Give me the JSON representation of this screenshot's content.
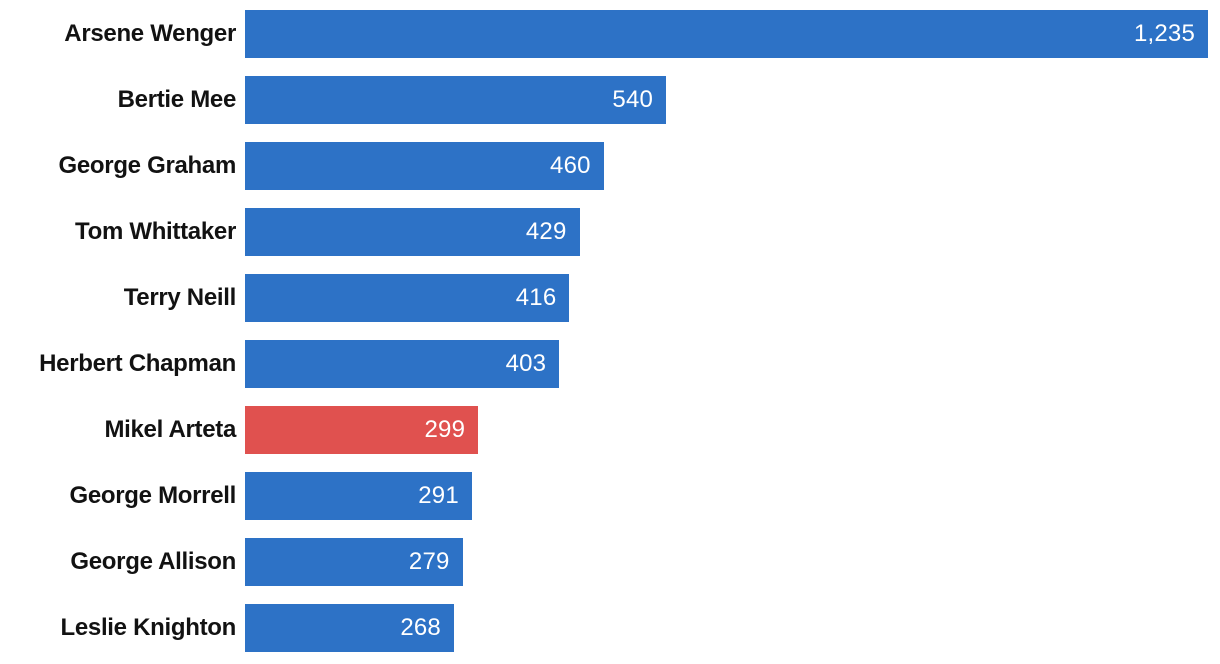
{
  "chart_data": {
    "type": "bar",
    "orientation": "horizontal",
    "title": "",
    "xlabel": "",
    "ylabel": "",
    "xlim": [
      0,
      1235
    ],
    "grid": false,
    "legend": false,
    "categories": [
      "Arsene Wenger",
      "Bertie Mee",
      "George Graham",
      "Tom Whittaker",
      "Terry Neill",
      "Herbert Chapman",
      "Mikel Arteta",
      "George Morrell",
      "George Allison",
      "Leslie Knighton"
    ],
    "values": [
      1235,
      540,
      460,
      429,
      416,
      403,
      299,
      291,
      279,
      268
    ],
    "value_labels": [
      "1,235",
      "540",
      "460",
      "429",
      "416",
      "403",
      "299",
      "291",
      "279",
      "268"
    ],
    "highlight_index": 6,
    "colors": {
      "bar": "#2D72C6",
      "highlight": "#E0514F",
      "value_text": "#ffffff",
      "category_text": "#121212",
      "background": "#ffffff"
    }
  }
}
